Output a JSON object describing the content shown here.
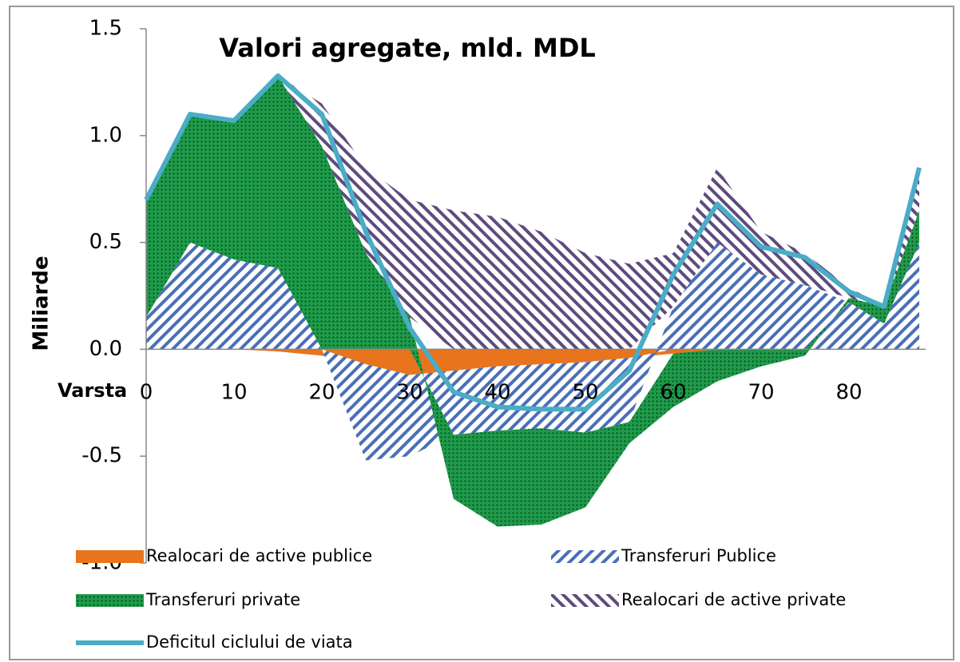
{
  "chart_data": {
    "type": "area",
    "title": "Valori agregate, mld. MDL",
    "ylabel": "Miliarde",
    "xlabel": "Varsta",
    "x": [
      0,
      5,
      10,
      15,
      20,
      25,
      30,
      35,
      40,
      45,
      50,
      55,
      60,
      65,
      70,
      75,
      80,
      84,
      88
    ],
    "xlim": [
      0,
      88
    ],
    "xticks": [
      0,
      10,
      20,
      30,
      40,
      50,
      60,
      70,
      80
    ],
    "ylim": [
      -1,
      1.5
    ],
    "yticks": [
      1.5,
      {
        "value": 1,
        "label": "1.0"
      },
      0.5,
      {
        "value": 0,
        "label": "0.0"
      },
      -0.5,
      {
        "value": -1,
        "label": "-1.0"
      }
    ],
    "series": [
      {
        "name": "Realocari de active publice",
        "color": "#e8741e",
        "style": "solid",
        "values": [
          0,
          0,
          0,
          -0.01,
          -0.03,
          -0.07,
          -0.12,
          -0.1,
          -0.08,
          -0.07,
          -0.06,
          -0.04,
          -0.02,
          0,
          0,
          0,
          0,
          0,
          0
        ]
      },
      {
        "name": "Transferuri Publice",
        "color": "#4a6fb5",
        "style": "hatch",
        "values": [
          0.15,
          0.5,
          0.42,
          0.38,
          0,
          -0.45,
          -0.38,
          -0.3,
          -0.3,
          -0.3,
          -0.33,
          -0.3,
          0.2,
          0.5,
          0.35,
          0.3,
          0.22,
          0.12,
          0.5
        ]
      },
      {
        "name": "Transferuri private",
        "color": "#1f9a4a",
        "style": "dots",
        "values": [
          0.55,
          0.6,
          0.65,
          0.9,
          0.95,
          0.45,
          0.15,
          -0.3,
          -0.45,
          -0.45,
          -0.35,
          -0.1,
          -0.25,
          -0.15,
          -0.08,
          -0.03,
          0.02,
          0.08,
          0.15
        ]
      },
      {
        "name": "Realocari de active private",
        "color": "#5e4b7e",
        "style": "hatch2",
        "values": [
          0,
          0,
          0,
          0,
          0.2,
          0.4,
          0.55,
          0.65,
          0.62,
          0.55,
          0.45,
          0.4,
          0.25,
          0.35,
          0.2,
          0.15,
          0.05,
          0,
          0.2
        ]
      },
      {
        "name": "Deficitul ciclului de viata",
        "color": "#4bacc6",
        "style": "line",
        "values": [
          0.7,
          1.1,
          1.07,
          1.28,
          1.1,
          0.55,
          0.1,
          -0.2,
          -0.27,
          -0.28,
          -0.28,
          -0.1,
          0.35,
          0.68,
          0.48,
          0.43,
          0.27,
          0.2,
          0.85
        ]
      }
    ]
  }
}
